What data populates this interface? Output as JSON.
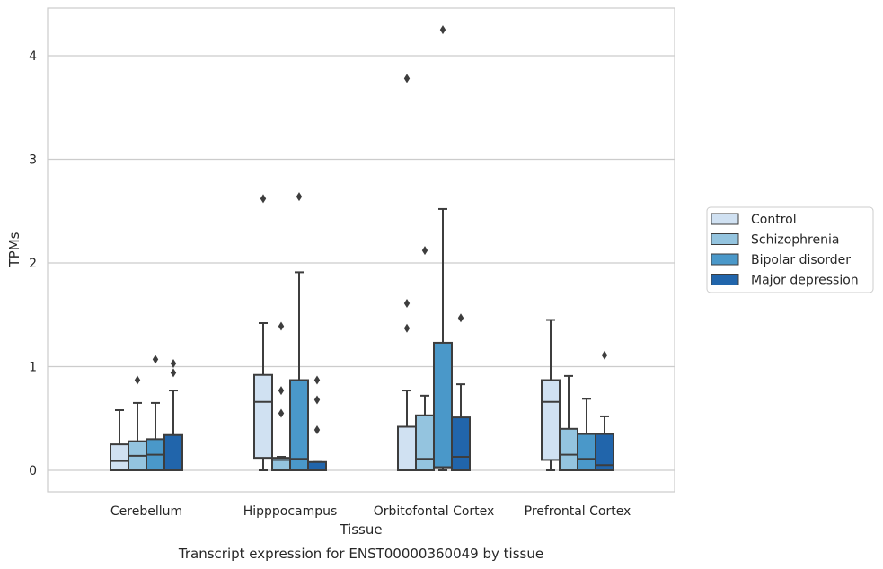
{
  "caption": "Transcript expression for ENST00000360049 by tissue",
  "chart_data": {
    "type": "box",
    "xlabel": "Tissue",
    "ylabel": "TPMs",
    "ylim": [
      -0.2,
      4.45
    ],
    "yticks": [
      0,
      1,
      2,
      3,
      4
    ],
    "grid": "horizontal",
    "legend_placement": "right",
    "categories": [
      "Cerebellum",
      "Hipppocampus",
      "Orbitofontal Cortex",
      "Prefrontal Cortex"
    ],
    "series": [
      {
        "name": "Control",
        "color": "#d0e1f2",
        "boxes": [
          {
            "whisker_low": 0,
            "q1": 0,
            "median": 0.09,
            "q3": 0.25,
            "whisker_high": 0.58,
            "outliers": []
          },
          {
            "whisker_low": 0,
            "q1": 0.12,
            "median": 0.66,
            "q3": 0.92,
            "whisker_high": 1.42,
            "outliers": [
              2.62
            ]
          },
          {
            "whisker_low": 0,
            "q1": 0,
            "median": 0,
            "q3": 0.42,
            "whisker_high": 0.77,
            "outliers": [
              1.37,
              1.61,
              3.78
            ]
          },
          {
            "whisker_low": 0,
            "q1": 0.1,
            "median": 0.66,
            "q3": 0.87,
            "whisker_high": 1.45,
            "outliers": []
          }
        ]
      },
      {
        "name": "Schizophrenia",
        "color": "#94c4df",
        "boxes": [
          {
            "whisker_low": 0,
            "q1": 0,
            "median": 0.14,
            "q3": 0.28,
            "whisker_high": 0.65,
            "outliers": [
              0.87
            ]
          },
          {
            "whisker_low": 0,
            "q1": 0,
            "median": 0.1,
            "q3": 0.12,
            "whisker_high": 0.13,
            "outliers": [
              0.55,
              0.77,
              1.39
            ]
          },
          {
            "whisker_low": 0,
            "q1": 0,
            "median": 0.11,
            "q3": 0.53,
            "whisker_high": 0.72,
            "outliers": [
              2.12
            ]
          },
          {
            "whisker_low": 0,
            "q1": 0,
            "median": 0.15,
            "q3": 0.4,
            "whisker_high": 0.91,
            "outliers": []
          }
        ]
      },
      {
        "name": "Bipolar disorder",
        "color": "#4a98c9",
        "boxes": [
          {
            "whisker_low": 0,
            "q1": 0,
            "median": 0.15,
            "q3": 0.3,
            "whisker_high": 0.65,
            "outliers": [
              1.07
            ]
          },
          {
            "whisker_low": 0,
            "q1": 0,
            "median": 0.11,
            "q3": 0.87,
            "whisker_high": 1.91,
            "outliers": [
              2.64
            ]
          },
          {
            "whisker_low": 0,
            "q1": 0.02,
            "median": 0.03,
            "q3": 1.23,
            "whisker_high": 2.52,
            "outliers": [
              4.25
            ]
          },
          {
            "whisker_low": 0,
            "q1": 0,
            "median": 0.11,
            "q3": 0.35,
            "whisker_high": 0.69,
            "outliers": []
          }
        ]
      },
      {
        "name": "Major depression",
        "color": "#2165ab",
        "boxes": [
          {
            "whisker_low": 0,
            "q1": 0,
            "median": 0,
            "q3": 0.34,
            "whisker_high": 0.77,
            "outliers": [
              0.94,
              1.03
            ]
          },
          {
            "whisker_low": 0,
            "q1": 0,
            "median": 0,
            "q3": 0.08,
            "whisker_high": 0.08,
            "outliers": [
              0.39,
              0.68,
              0.87
            ]
          },
          {
            "whisker_low": 0,
            "q1": 0,
            "median": 0.13,
            "q3": 0.51,
            "whisker_high": 0.83,
            "outliers": [
              1.47
            ]
          },
          {
            "whisker_low": 0,
            "q1": 0,
            "median": 0.05,
            "q3": 0.35,
            "whisker_high": 0.52,
            "outliers": [
              1.11
            ]
          }
        ]
      }
    ]
  }
}
